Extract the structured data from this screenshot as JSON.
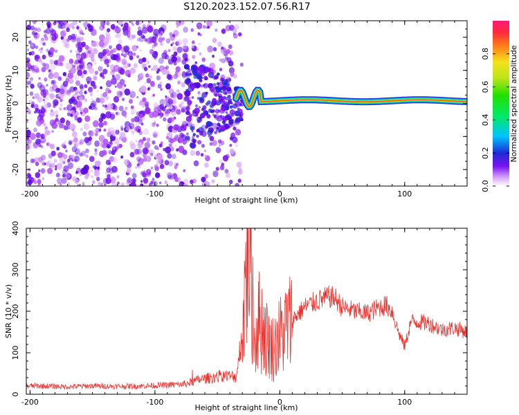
{
  "title": "S120.2023.152.07.56.R17",
  "colors": {
    "snr_line": "#e8322e",
    "dispersion_band": [
      "#1e2bd6",
      "#00c2ff",
      "#00e86a",
      "#f4e21a",
      "#ff3a1a"
    ],
    "scatter": [
      "#7a13f0",
      "#b14df5",
      "#d9a8fb",
      "#5a0ae0"
    ]
  },
  "chart_data": [
    {
      "type": "heatmap",
      "xlabel": "Height of straight line (km)",
      "ylabel": "Frequency (Hz)",
      "xlim": [
        -203,
        150
      ],
      "ylim": [
        -25,
        25
      ],
      "x_ticks": [
        -200,
        -100,
        0,
        100
      ],
      "x_tick_labels": [
        "-200",
        "-100",
        "0",
        "100"
      ],
      "y_ticks": [
        -20,
        -10,
        0,
        10,
        20
      ],
      "y_tick_labels": [
        "-20",
        "-10",
        "0",
        "10",
        "20"
      ],
      "colorbar": {
        "label": "Normalized spectral amplitude",
        "range": [
          0,
          1
        ],
        "ticks": [
          0.0,
          0.2,
          0.4,
          0.6,
          0.8
        ],
        "tick_labels": [
          "0.0",
          "0.2",
          "0.4",
          "0.6",
          "0.8"
        ]
      }
    },
    {
      "type": "line",
      "xlabel": "Height of straight line (km)",
      "ylabel": "SNR (10 * v/v)",
      "xlim": [
        -203,
        150
      ],
      "ylim": [
        0,
        400
      ],
      "x_ticks": [
        -200,
        -100,
        0,
        100
      ],
      "x_tick_labels": [
        "-200",
        "-100",
        "0",
        "100"
      ],
      "y_ticks": [
        0,
        100,
        200,
        300,
        400
      ],
      "y_tick_labels": [
        "0",
        "100",
        "200",
        "300",
        "400"
      ],
      "series": [
        {
          "x": [
            -203,
            -190,
            -170,
            -150,
            -130,
            -110,
            -90,
            -75,
            -65,
            -55,
            -45,
            -35,
            -30,
            -27,
            -25,
            -22,
            -20,
            -18,
            -15,
            -12,
            -10,
            -5,
            0,
            5,
            10,
            20,
            30,
            40,
            45,
            50,
            60,
            70,
            80,
            85,
            90,
            95,
            100,
            105,
            110,
            120,
            130,
            140,
            150
          ],
          "y": [
            20,
            20,
            18,
            20,
            19,
            20,
            22,
            25,
            35,
            40,
            45,
            42,
            150,
            300,
            380,
            250,
            120,
            180,
            170,
            150,
            130,
            110,
            140,
            160,
            180,
            210,
            225,
            235,
            230,
            210,
            200,
            195,
            210,
            215,
            200,
            150,
            115,
            175,
            175,
            170,
            155,
            160,
            150
          ]
        }
      ]
    }
  ]
}
